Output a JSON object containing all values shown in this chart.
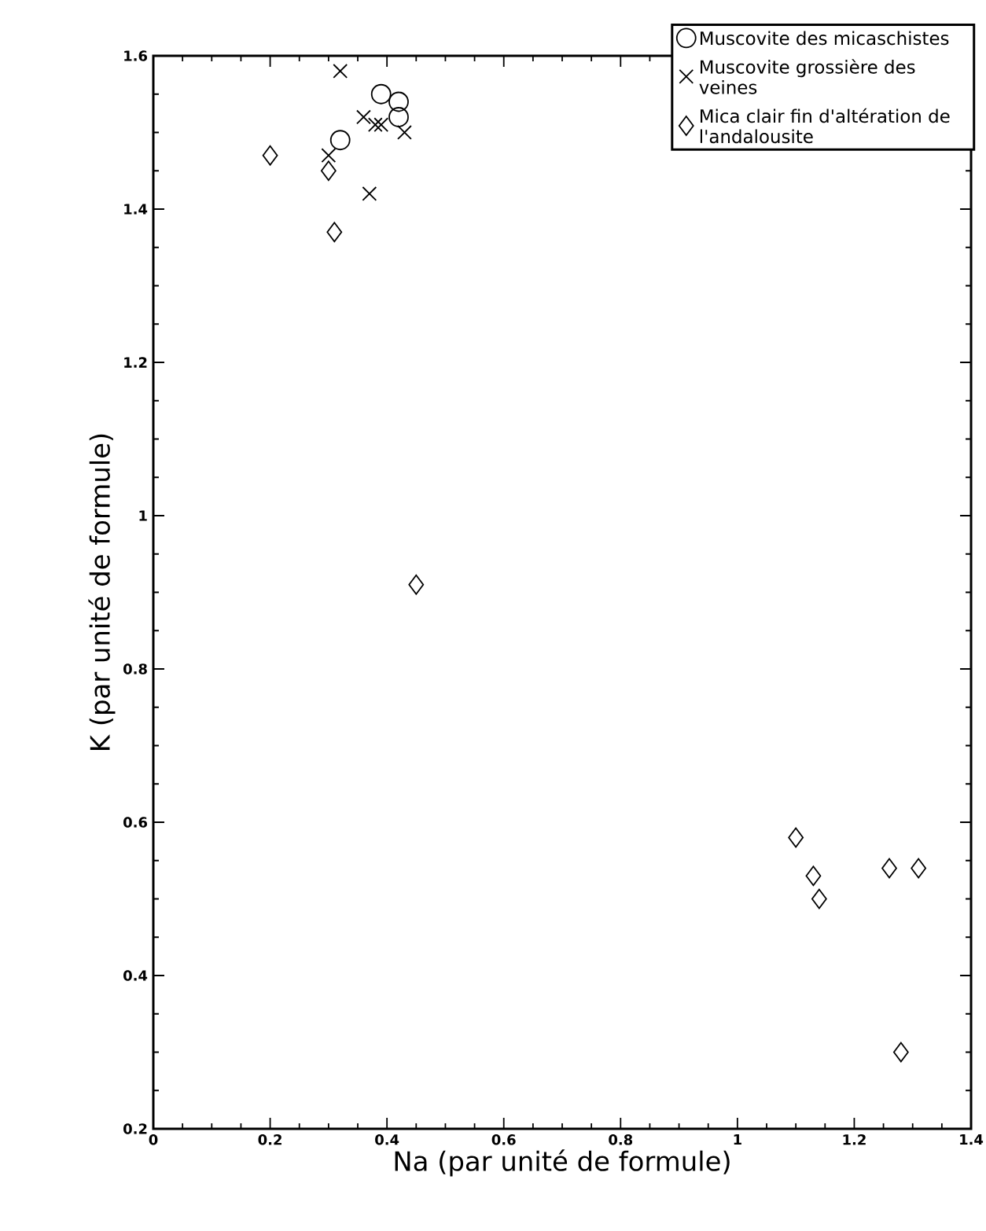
{
  "chart_data": {
    "type": "scatter",
    "xlabel": "Na (par unité de formule)",
    "ylabel": "K  (par unité de formule)",
    "xlim": [
      0,
      1.4
    ],
    "ylim": [
      0.2,
      1.6
    ],
    "xticks": [
      0,
      0.2,
      0.4,
      0.6,
      0.8,
      1,
      1.2,
      1.4
    ],
    "yticks": [
      0.2,
      0.4,
      0.6,
      0.8,
      1,
      1.2,
      1.4,
      1.6
    ],
    "legend": "top right",
    "grid": false,
    "series": [
      {
        "name": "Muscovite des micaschistes",
        "color": "#000000",
        "marker": "circle",
        "x": [
          0.39,
          0.42,
          0.42,
          0.32
        ],
        "values": [
          1.55,
          1.54,
          1.52,
          1.49
        ]
      },
      {
        "name": "Muscovite grossière des veines",
        "color": "#000000",
        "marker": "cross",
        "x": [
          0.32,
          0.37,
          0.38,
          0.36,
          0.39,
          0.43,
          0.3
        ],
        "values": [
          1.58,
          1.42,
          1.51,
          1.52,
          1.51,
          1.5,
          1.47
        ]
      },
      {
        "name": "Mica clair fin d'altération de l'andalousite",
        "color": "#000000",
        "marker": "diamond",
        "x": [
          0.2,
          0.3,
          0.31,
          0.45,
          1.1,
          1.13,
          1.14,
          1.26,
          1.31,
          1.28
        ],
        "values": [
          1.47,
          1.45,
          1.37,
          0.91,
          0.58,
          0.53,
          0.5,
          0.54,
          0.54,
          0.3
        ]
      }
    ]
  }
}
